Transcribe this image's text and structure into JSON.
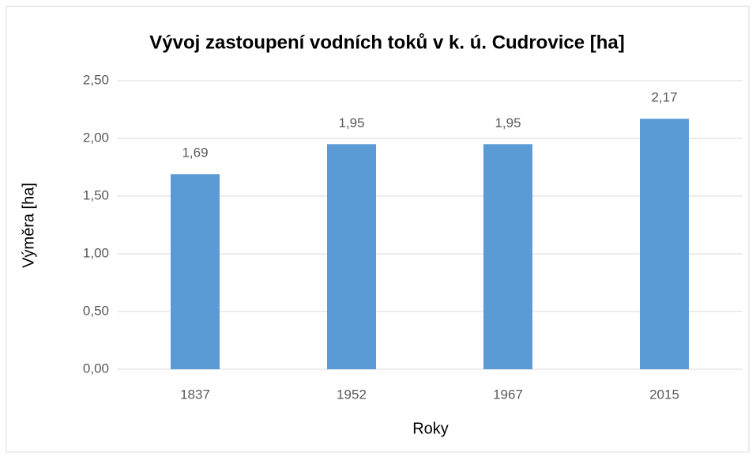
{
  "chart_data": {
    "type": "bar",
    "title": "Vývoj zastoupení vodních toků v k. ú. Cudrovice [ha]",
    "x_label": "Roky",
    "y_label": "Výměra [ha]",
    "categories": [
      "1837",
      "1952",
      "1967",
      "2015"
    ],
    "values": [
      1.69,
      1.95,
      1.95,
      2.17
    ],
    "value_labels": [
      "1,69",
      "1,95",
      "1,95",
      "2,17"
    ],
    "color": "#5b9bd5",
    "ylim": [
      0,
      2.5
    ],
    "yticks": [
      {
        "value": 0,
        "label": "0,00"
      },
      {
        "value": 0.5,
        "label": "0,50"
      },
      {
        "value": 1,
        "label": "1,00"
      },
      {
        "value": 1.5,
        "label": "1,50"
      },
      {
        "value": 2,
        "label": "2,00"
      },
      {
        "value": 2.5,
        "label": "2,50"
      }
    ],
    "grid": true
  }
}
